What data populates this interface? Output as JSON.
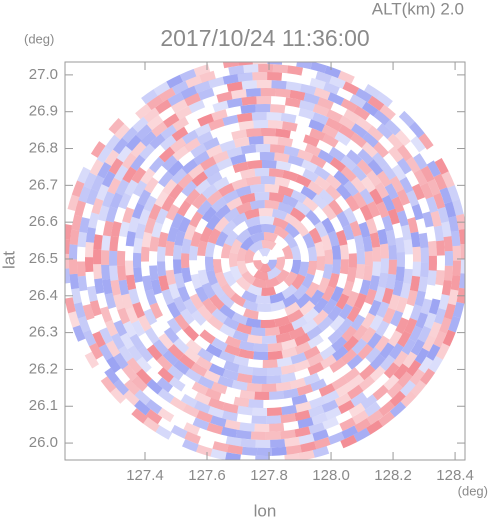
{
  "chart_data": {
    "type": "radar-ppi",
    "title": "2017/10/24 11:36:00",
    "altitude": "ALT(km) 2.0",
    "x_label": "lon",
    "x_unit": "(deg)",
    "y_label": "lat",
    "y_unit": "(deg)",
    "xlim": [
      127.142,
      128.432
    ],
    "ylim": [
      25.954,
      27.035
    ],
    "xticks": [
      127.4,
      127.6,
      127.8,
      {
        "value": 128,
        "label": "128.0"
      },
      128.2,
      128.4
    ],
    "yticks": [
      {
        "value": 26,
        "label": "26.0"
      },
      26.1,
      26.2,
      26.3,
      26.4,
      26.5,
      26.6,
      26.7,
      26.8,
      26.9,
      {
        "value": 27,
        "label": "27.0"
      }
    ]
  }
}
